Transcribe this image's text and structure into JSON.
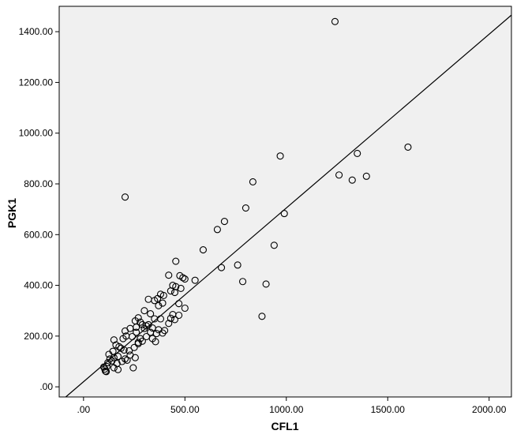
{
  "chart_data": {
    "type": "scatter",
    "xlabel": "CFL1",
    "ylabel": "PGK1",
    "xlim": [
      -120,
      2110
    ],
    "ylim": [
      -40,
      1500
    ],
    "x_ticks": [
      0,
      500,
      1000,
      1500,
      2000
    ],
    "x_tick_labels": [
      ".00",
      "500.00",
      "1000.00",
      "1500.00",
      "2000.00"
    ],
    "y_ticks": [
      0,
      200,
      400,
      600,
      800,
      1000,
      1200,
      1400
    ],
    "y_tick_labels": [
      ".00",
      "200.00",
      "400.00",
      "600.00",
      "800.00",
      "1000.00",
      "1200.00",
      "1400.00"
    ],
    "grid": false,
    "fit_line": {
      "intercept": 20,
      "slope": 0.685
    },
    "colors": {
      "plot_background": "#f0f0f0",
      "marker_stroke": "#000000",
      "line": "#000000"
    },
    "points": [
      [
        1240,
        1440
      ],
      [
        1600,
        945
      ],
      [
        970,
        910
      ],
      [
        1350,
        920
      ],
      [
        1260,
        835
      ],
      [
        1325,
        815
      ],
      [
        1395,
        830
      ],
      [
        835,
        808
      ],
      [
        205,
        748
      ],
      [
        800,
        705
      ],
      [
        990,
        683
      ],
      [
        695,
        652
      ],
      [
        660,
        620
      ],
      [
        940,
        558
      ],
      [
        590,
        540
      ],
      [
        455,
        495
      ],
      [
        760,
        480
      ],
      [
        680,
        470
      ],
      [
        550,
        420
      ],
      [
        785,
        415
      ],
      [
        900,
        405
      ],
      [
        420,
        440
      ],
      [
        490,
        430
      ],
      [
        475,
        438
      ],
      [
        500,
        425
      ],
      [
        440,
        400
      ],
      [
        455,
        395
      ],
      [
        480,
        388
      ],
      [
        380,
        365
      ],
      [
        395,
        360
      ],
      [
        365,
        348
      ],
      [
        320,
        345
      ],
      [
        350,
        340
      ],
      [
        430,
        378
      ],
      [
        450,
        372
      ],
      [
        390,
        330
      ],
      [
        470,
        328
      ],
      [
        370,
        320
      ],
      [
        500,
        310
      ],
      [
        300,
        300
      ],
      [
        330,
        288
      ],
      [
        440,
        285
      ],
      [
        470,
        282
      ],
      [
        430,
        270
      ],
      [
        350,
        268
      ],
      [
        270,
        272
      ],
      [
        255,
        260
      ],
      [
        280,
        255
      ],
      [
        290,
        245
      ],
      [
        310,
        240
      ],
      [
        340,
        232
      ],
      [
        370,
        225
      ],
      [
        400,
        222
      ],
      [
        230,
        230
      ],
      [
        205,
        220
      ],
      [
        260,
        235
      ],
      [
        300,
        230
      ],
      [
        330,
        215
      ],
      [
        360,
        210
      ],
      [
        390,
        212
      ],
      [
        210,
        200
      ],
      [
        240,
        198
      ],
      [
        195,
        190
      ],
      [
        150,
        185
      ],
      [
        160,
        165
      ],
      [
        175,
        158
      ],
      [
        185,
        152
      ],
      [
        200,
        145
      ],
      [
        225,
        142
      ],
      [
        250,
        155
      ],
      [
        270,
        175
      ],
      [
        290,
        180
      ],
      [
        340,
        190
      ],
      [
        355,
        178
      ],
      [
        230,
        125
      ],
      [
        255,
        115
      ],
      [
        205,
        110
      ],
      [
        170,
        120
      ],
      [
        150,
        115
      ],
      [
        130,
        110
      ],
      [
        140,
        102
      ],
      [
        120,
        95
      ],
      [
        165,
        92
      ],
      [
        115,
        80
      ],
      [
        100,
        78
      ],
      [
        105,
        70
      ],
      [
        108,
        62
      ],
      [
        112,
        60
      ],
      [
        150,
        75
      ],
      [
        170,
        68
      ],
      [
        190,
        100
      ],
      [
        215,
        105
      ],
      [
        245,
        75
      ],
      [
        270,
        170
      ],
      [
        880,
        278
      ],
      [
        450,
        265
      ],
      [
        420,
        250
      ],
      [
        310,
        198
      ],
      [
        280,
        190
      ],
      [
        320,
        245
      ],
      [
        380,
        268
      ],
      [
        260,
        215
      ],
      [
        145,
        140
      ],
      [
        125,
        128
      ]
    ]
  }
}
